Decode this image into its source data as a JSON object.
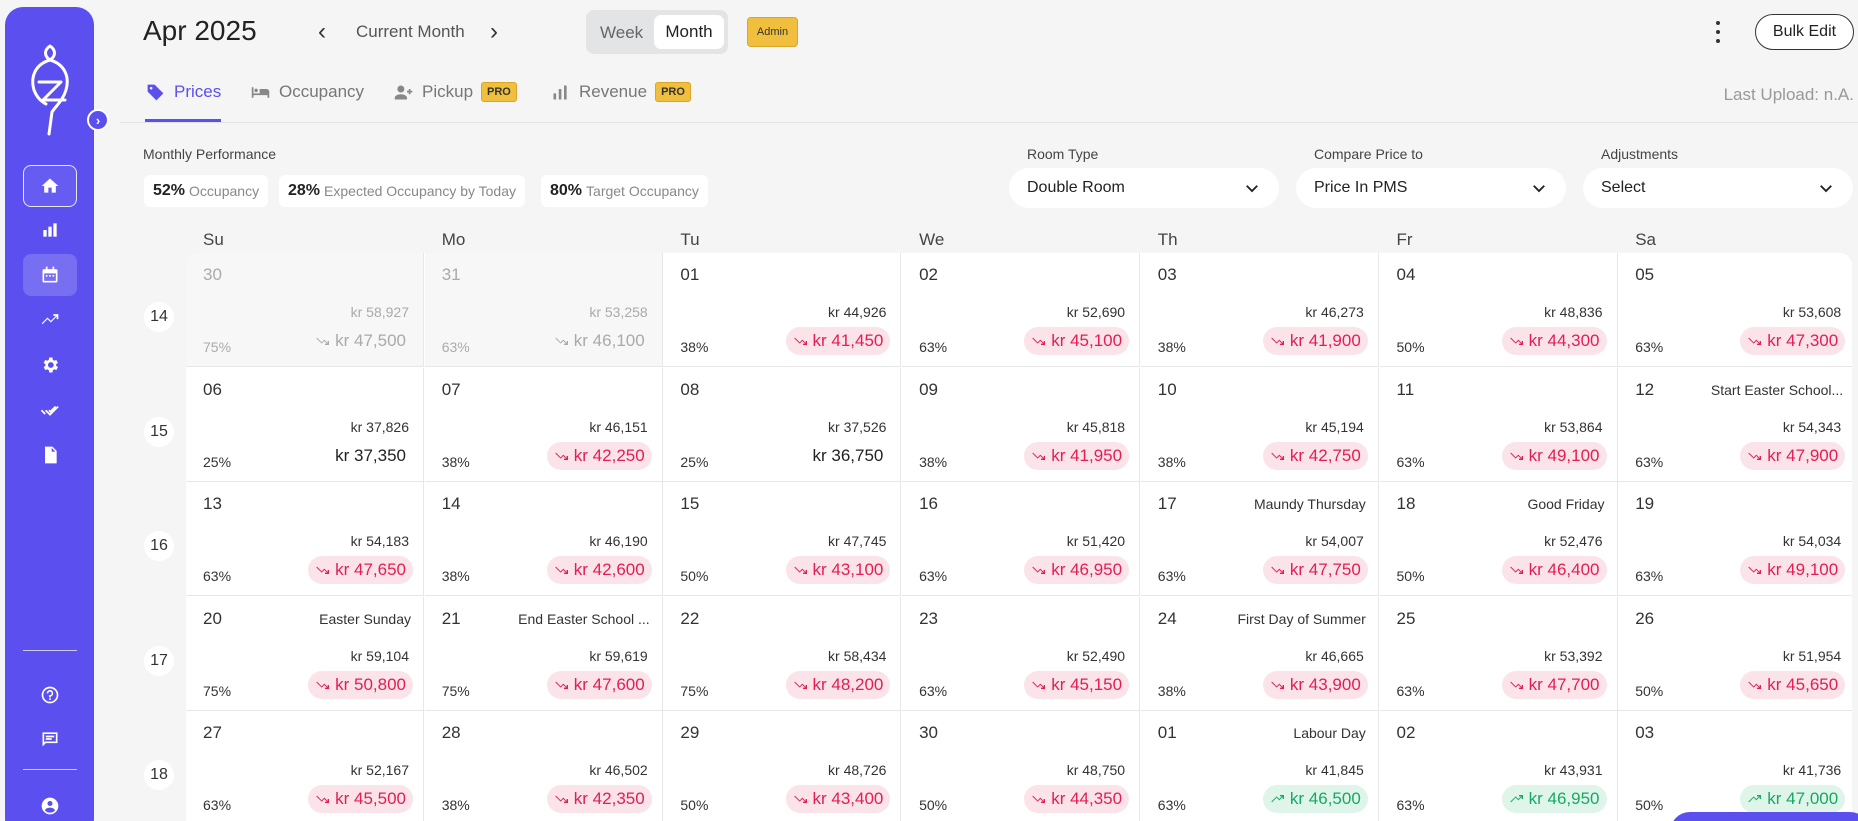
{
  "header": {
    "title": "Apr 2025",
    "current_month": "Current Month",
    "view_week": "Week",
    "view_month": "Month",
    "admin_badge": "Admin",
    "bulk_edit": "Bulk Edit",
    "last_upload": "Last Upload: n.A."
  },
  "tabs": [
    {
      "label": "Prices",
      "icon": "tag-icon",
      "pro": ""
    },
    {
      "label": "Occupancy",
      "icon": "bed-icon",
      "pro": ""
    },
    {
      "label": "Pickup",
      "icon": "user-plus-icon",
      "pro": "PRO"
    },
    {
      "label": "Revenue",
      "icon": "bar-chart-icon",
      "pro": "PRO"
    }
  ],
  "performance": {
    "label": "Monthly Performance",
    "pills": [
      {
        "value": "52%",
        "label": "Occupancy"
      },
      {
        "value": "28%",
        "label": "Expected Occupancy by Today"
      },
      {
        "value": "80%",
        "label": "Target Occupancy"
      }
    ]
  },
  "filters": {
    "room_type": {
      "label": "Room Type",
      "value": "Double Room"
    },
    "compare": {
      "label": "Compare Price to",
      "value": "Price In PMS"
    },
    "adjustments": {
      "label": "Adjustments",
      "value": "Select"
    }
  },
  "days": [
    "Su",
    "Mo",
    "Tu",
    "We",
    "Th",
    "Fr",
    "Sa"
  ],
  "weeks": [
    {
      "num": "14",
      "cells": [
        {
          "d": "30",
          "ev": "",
          "pms": "kr 58,927",
          "occ": "75%",
          "price": "kr 47,500",
          "trend": "pdown",
          "past": true
        },
        {
          "d": "31",
          "ev": "",
          "pms": "kr 53,258",
          "occ": "63%",
          "price": "kr 46,100",
          "trend": "pdown",
          "past": true
        },
        {
          "d": "01",
          "ev": "",
          "pms": "kr 44,926",
          "occ": "38%",
          "price": "kr 41,450",
          "trend": "down"
        },
        {
          "d": "02",
          "ev": "",
          "pms": "kr 52,690",
          "occ": "63%",
          "price": "kr 45,100",
          "trend": "down"
        },
        {
          "d": "03",
          "ev": "",
          "pms": "kr 46,273",
          "occ": "38%",
          "price": "kr 41,900",
          "trend": "down"
        },
        {
          "d": "04",
          "ev": "",
          "pms": "kr 48,836",
          "occ": "50%",
          "price": "kr 44,300",
          "trend": "down"
        },
        {
          "d": "05",
          "ev": "",
          "pms": "kr 53,608",
          "occ": "63%",
          "price": "kr 47,300",
          "trend": "down"
        }
      ]
    },
    {
      "num": "15",
      "cells": [
        {
          "d": "06",
          "ev": "",
          "pms": "kr 37,826",
          "occ": "25%",
          "price": "kr 37,350",
          "trend": "neutral"
        },
        {
          "d": "07",
          "ev": "",
          "pms": "kr 46,151",
          "occ": "38%",
          "price": "kr 42,250",
          "trend": "down"
        },
        {
          "d": "08",
          "ev": "",
          "pms": "kr 37,526",
          "occ": "25%",
          "price": "kr 36,750",
          "trend": "neutral"
        },
        {
          "d": "09",
          "ev": "",
          "pms": "kr 45,818",
          "occ": "38%",
          "price": "kr 41,950",
          "trend": "down"
        },
        {
          "d": "10",
          "ev": "",
          "pms": "kr 45,194",
          "occ": "38%",
          "price": "kr 42,750",
          "trend": "down"
        },
        {
          "d": "11",
          "ev": "",
          "pms": "kr 53,864",
          "occ": "63%",
          "price": "kr 49,100",
          "trend": "down"
        },
        {
          "d": "12",
          "ev": "Start Easter School...",
          "pms": "kr 54,343",
          "occ": "63%",
          "price": "kr 47,900",
          "trend": "down"
        }
      ]
    },
    {
      "num": "16",
      "cells": [
        {
          "d": "13",
          "ev": "",
          "pms": "kr 54,183",
          "occ": "63%",
          "price": "kr 47,650",
          "trend": "down"
        },
        {
          "d": "14",
          "ev": "",
          "pms": "kr 46,190",
          "occ": "38%",
          "price": "kr 42,600",
          "trend": "down"
        },
        {
          "d": "15",
          "ev": "",
          "pms": "kr 47,745",
          "occ": "50%",
          "price": "kr 43,100",
          "trend": "down"
        },
        {
          "d": "16",
          "ev": "",
          "pms": "kr 51,420",
          "occ": "63%",
          "price": "kr 46,950",
          "trend": "down"
        },
        {
          "d": "17",
          "ev": "Maundy Thursday",
          "pms": "kr 54,007",
          "occ": "63%",
          "price": "kr 47,750",
          "trend": "down"
        },
        {
          "d": "18",
          "ev": "Good Friday",
          "pms": "kr 52,476",
          "occ": "50%",
          "price": "kr 46,400",
          "trend": "down"
        },
        {
          "d": "19",
          "ev": "",
          "pms": "kr 54,034",
          "occ": "63%",
          "price": "kr 49,100",
          "trend": "down"
        }
      ]
    },
    {
      "num": "17",
      "cells": [
        {
          "d": "20",
          "ev": "Easter Sunday",
          "pms": "kr 59,104",
          "occ": "75%",
          "price": "kr 50,800",
          "trend": "down"
        },
        {
          "d": "21",
          "ev": "End Easter School ...",
          "pms": "kr 59,619",
          "occ": "75%",
          "price": "kr 47,600",
          "trend": "down"
        },
        {
          "d": "22",
          "ev": "",
          "pms": "kr 58,434",
          "occ": "75%",
          "price": "kr 48,200",
          "trend": "down"
        },
        {
          "d": "23",
          "ev": "",
          "pms": "kr 52,490",
          "occ": "63%",
          "price": "kr 45,150",
          "trend": "down"
        },
        {
          "d": "24",
          "ev": "First Day of Summer",
          "pms": "kr 46,665",
          "occ": "38%",
          "price": "kr 43,900",
          "trend": "down"
        },
        {
          "d": "25",
          "ev": "",
          "pms": "kr 53,392",
          "occ": "63%",
          "price": "kr 47,700",
          "trend": "down"
        },
        {
          "d": "26",
          "ev": "",
          "pms": "kr 51,954",
          "occ": "50%",
          "price": "kr 45,650",
          "trend": "down"
        }
      ]
    },
    {
      "num": "18",
      "cells": [
        {
          "d": "27",
          "ev": "",
          "pms": "kr 52,167",
          "occ": "63%",
          "price": "kr 45,500",
          "trend": "down"
        },
        {
          "d": "28",
          "ev": "",
          "pms": "kr 46,502",
          "occ": "38%",
          "price": "kr 42,350",
          "trend": "down"
        },
        {
          "d": "29",
          "ev": "",
          "pms": "kr 48,726",
          "occ": "50%",
          "price": "kr 43,400",
          "trend": "down"
        },
        {
          "d": "30",
          "ev": "",
          "pms": "kr 48,750",
          "occ": "50%",
          "price": "kr 44,350",
          "trend": "down"
        },
        {
          "d": "01",
          "ev": "Labour Day",
          "pms": "kr 41,845",
          "occ": "63%",
          "price": "kr 46,500",
          "trend": "up"
        },
        {
          "d": "02",
          "ev": "",
          "pms": "kr 43,931",
          "occ": "63%",
          "price": "kr 46,950",
          "trend": "up"
        },
        {
          "d": "03",
          "ev": "",
          "pms": "kr 41,736",
          "occ": "50%",
          "price": "kr 47,000",
          "trend": "up"
        }
      ]
    }
  ]
}
